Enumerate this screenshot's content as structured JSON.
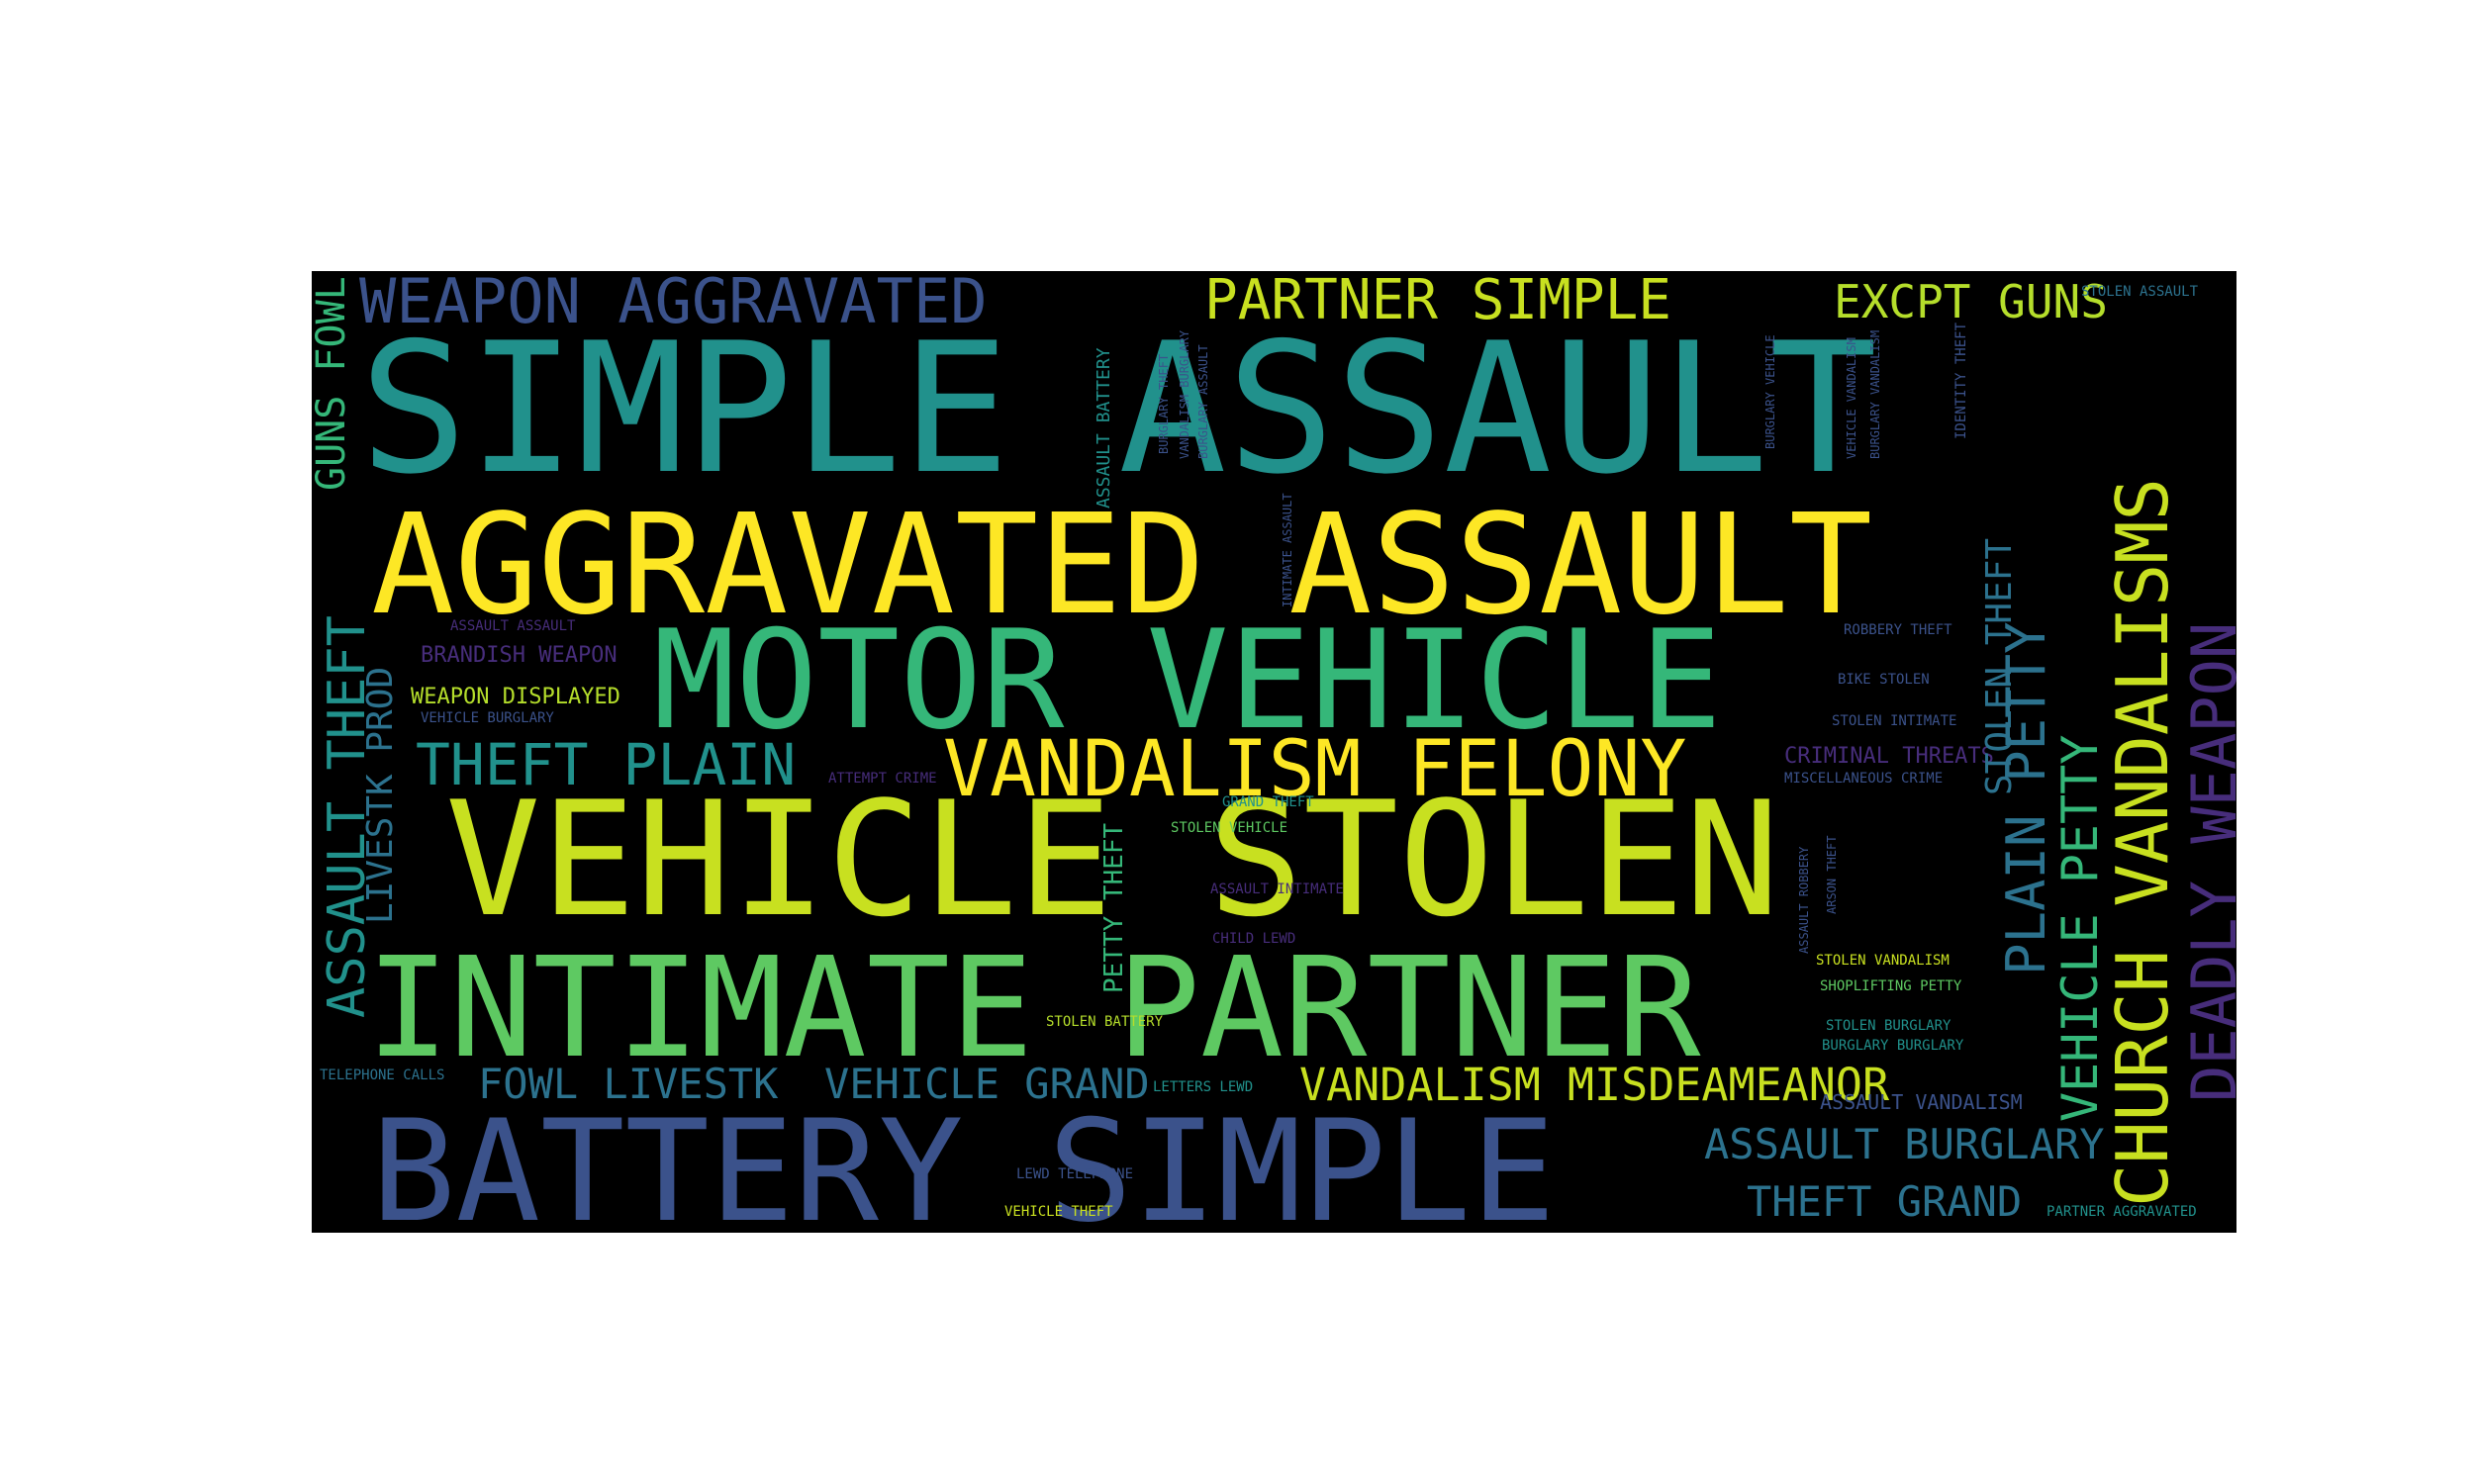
{
  "palette": {
    "yellow": "#fde725",
    "lime": "#c8e020",
    "green": "#5ec962",
    "teal_light": "#35b779",
    "teal": "#21918c",
    "blue_teal": "#2c728e",
    "blue": "#3b528b",
    "indigo": "#472d7b",
    "purple": "#440154"
  },
  "words": [
    {
      "text": "SIMPLE ASSAULT",
      "color": "#21918c"
    },
    {
      "text": "AGGRAVATED ASSAULT",
      "color": "#fde725"
    },
    {
      "text": "MOTOR VEHICLE",
      "color": "#35b779"
    },
    {
      "text": "VEHICLE STOLEN",
      "color": "#c8e020"
    },
    {
      "text": "INTIMATE PARTNER",
      "color": "#5ec962"
    },
    {
      "text": "BATTERY SIMPLE",
      "color": "#3b528b"
    },
    {
      "text": "VANDALISM FELONY",
      "color": "#fde725"
    },
    {
      "text": "WEAPON AGGRAVATED",
      "color": "#3b528b"
    },
    {
      "text": "PARTNER SIMPLE",
      "color": "#c8e020"
    },
    {
      "text": "EXCPT GUNS",
      "color": "#b5de2b"
    },
    {
      "text": "THEFT PLAIN",
      "color": "#21918c"
    },
    {
      "text": "VANDALISM MISDEAMEANOR",
      "color": "#c8e020"
    },
    {
      "text": "FOWL LIVESTK",
      "color": "#2c728e"
    },
    {
      "text": "VEHICLE GRAND",
      "color": "#2c728e"
    },
    {
      "text": "ASSAULT BURGLARY",
      "color": "#2c728e"
    },
    {
      "text": "THEFT GRAND",
      "color": "#2c728e"
    },
    {
      "text": "WEAPON DISPLAYED",
      "color": "#b5de2b"
    },
    {
      "text": "BRANDISH WEAPON",
      "color": "#472d7b"
    },
    {
      "text": "CRIMINAL THREATS",
      "color": "#472d7b"
    },
    {
      "text": "ASSAULT VANDALISM",
      "color": "#3b528b"
    },
    {
      "text": "STOLEN ASSAULT",
      "color": "#2c728e"
    },
    {
      "text": "ASSAULT ASSAULT",
      "color": "#472d7b"
    },
    {
      "text": "VEHICLE BURGLARY",
      "color": "#3b528b"
    },
    {
      "text": "ROBBERY THEFT",
      "color": "#3b528b"
    },
    {
      "text": "BIKE STOLEN",
      "color": "#3b528b"
    },
    {
      "text": "STOLEN INTIMATE",
      "color": "#3b528b"
    },
    {
      "text": "MISCELLANEOUS CRIME",
      "color": "#3b528b"
    },
    {
      "text": "ATTEMPT CRIME",
      "color": "#472d7b"
    },
    {
      "text": "GRAND THEFT",
      "color": "#21918c"
    },
    {
      "text": "STOLEN VEHICLE",
      "color": "#5ec962"
    },
    {
      "text": "ASSAULT INTIMATE",
      "color": "#472d7b"
    },
    {
      "text": "CHILD LEWD",
      "color": "#472d7b"
    },
    {
      "text": "STOLEN VANDALISM",
      "color": "#c8e020"
    },
    {
      "text": "SHOPLIFTING PETTY",
      "color": "#5ec962"
    },
    {
      "text": "STOLEN BURGLARY",
      "color": "#21918c"
    },
    {
      "text": "BURGLARY BURGLARY",
      "color": "#21918c"
    },
    {
      "text": "STOLEN BATTERY",
      "color": "#b5de2b"
    },
    {
      "text": "TELEPHONE CALLS",
      "color": "#2c728e"
    },
    {
      "text": "LETTERS LEWD",
      "color": "#21918c"
    },
    {
      "text": "LEWD TELEPHONE",
      "color": "#3b528b"
    },
    {
      "text": "VEHICLE THEFT",
      "color": "#c8e020"
    },
    {
      "text": "PARTNER AGGRAVATED",
      "color": "#21918c"
    },
    {
      "text": "GUNS FOWL",
      "color": "#35b779"
    },
    {
      "text": "ASSAULT THEFT",
      "color": "#21918c"
    },
    {
      "text": "LIVESTK PROD",
      "color": "#2c728e"
    },
    {
      "text": "ASSAULT BATTERY",
      "color": "#21918c"
    },
    {
      "text": "BURGLARY THEFT",
      "color": "#3b528b"
    },
    {
      "text": "VANDALISM BURGLARY",
      "color": "#3b528b"
    },
    {
      "text": "BURGLARY ASSAULT",
      "color": "#3b528b"
    },
    {
      "text": "INTIMATE ASSAULT",
      "color": "#3b528b"
    },
    {
      "text": "PETTY THEFT",
      "color": "#35b779"
    },
    {
      "text": "BURGLARY VEHICLE",
      "color": "#3b528b"
    },
    {
      "text": "VEHICLE VANDALISM",
      "color": "#3b528b"
    },
    {
      "text": "BURGLARY VANDALISM",
      "color": "#3b528b"
    },
    {
      "text": "IDENTITY THEFT",
      "color": "#3b528b"
    },
    {
      "text": "STOLEN THEFT",
      "color": "#2c728e"
    },
    {
      "text": "PLAIN PETTY",
      "color": "#2c728e"
    },
    {
      "text": "VEHICLE PETTY",
      "color": "#35b779"
    },
    {
      "text": "CHURCH VANDALISMS",
      "color": "#c8e020"
    },
    {
      "text": "DEADLY WEAPON",
      "color": "#472d7b"
    },
    {
      "text": "ASSAULT ROBBERY",
      "color": "#3b528b"
    },
    {
      "text": "ARSON THEFT",
      "color": "#3b528b"
    }
  ]
}
